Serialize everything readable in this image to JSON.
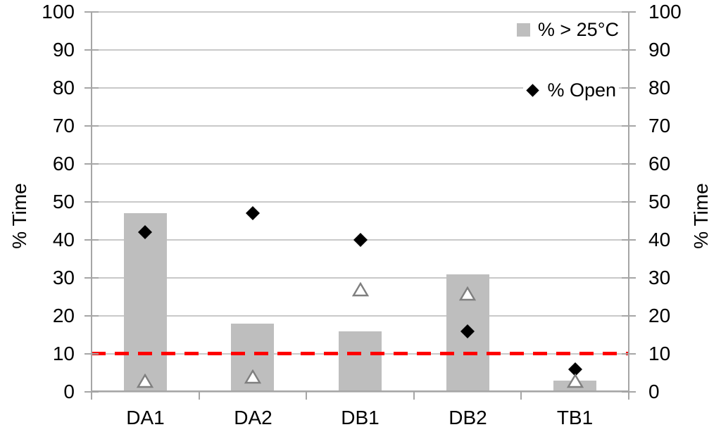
{
  "chart_data": {
    "type": "bar+scatter",
    "title": "",
    "categories": [
      "DA1",
      "DA2",
      "DB1",
      "DB2",
      "TB1"
    ],
    "series": [
      {
        "name": "% > 25°C",
        "type": "bar",
        "marker": "square",
        "color": "#bebebe",
        "values": [
          47,
          18,
          16,
          31,
          3
        ],
        "in_legend": true
      },
      {
        "name": "% Open",
        "type": "scatter",
        "marker": "diamond",
        "color": "#000000",
        "values": [
          42,
          47,
          40,
          16,
          6
        ],
        "in_legend": true
      },
      {
        "name": "(unlabeled triangle series)",
        "type": "scatter",
        "marker": "triangle-open",
        "color": "#ffffff",
        "stroke": "#7f7f7f",
        "values": [
          3,
          4,
          27,
          26,
          3
        ],
        "in_legend": false
      }
    ],
    "reference_line": {
      "value": 10,
      "color": "#ff0000",
      "style": "dashed"
    },
    "axes": {
      "left": {
        "label": "% Time",
        "min": 0,
        "max": 100,
        "step": 10
      },
      "right": {
        "label": "% Time",
        "min": 0,
        "max": 100,
        "step": 10
      }
    },
    "legend": {
      "position": "top-right-inside",
      "items": [
        "% > 25°C",
        "% Open"
      ]
    },
    "grid": {
      "horizontal": true,
      "vertical": false
    },
    "colors": {
      "background": "#ffffff",
      "gridline": "#c9c9c9",
      "axis": "#a6a6a6",
      "text": "#000000",
      "bar": "#bebebe",
      "diamond": "#000000",
      "triangle_fill": "#ffffff",
      "triangle_stroke": "#7f7f7f",
      "reference": "#ff0000"
    }
  }
}
